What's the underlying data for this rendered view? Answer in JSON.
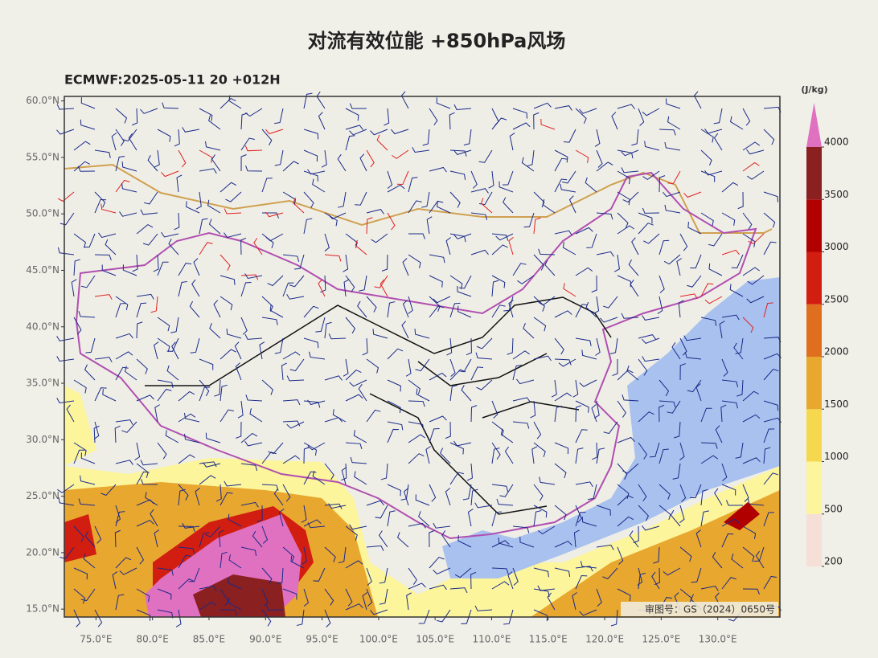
{
  "header": {
    "title": "对流有效位能 +850hPa风场",
    "subtitle": "ECMWF:2025-05-11 20 +012H"
  },
  "map": {
    "lat_lim": [
      14.3,
      60.4
    ],
    "lon_lim": [
      72.2,
      135.5
    ],
    "lat_ticks": [
      {
        "value": 60,
        "label": "60.0°N"
      },
      {
        "value": 55,
        "label": "55.0°N"
      },
      {
        "value": 50,
        "label": "50.0°N"
      },
      {
        "value": 45,
        "label": "45.0°N"
      },
      {
        "value": 40,
        "label": "40.0°N"
      },
      {
        "value": 35,
        "label": "35.0°N"
      },
      {
        "value": 30,
        "label": "30.0°N"
      },
      {
        "value": 25,
        "label": "25.0°N"
      },
      {
        "value": 20,
        "label": "20.0°N"
      },
      {
        "value": 15,
        "label": "15.0°N"
      }
    ],
    "lon_ticks": [
      {
        "value": 75,
        "label": "75.0°E"
      },
      {
        "value": 80,
        "label": "80.0°E"
      },
      {
        "value": 85,
        "label": "85.0°E"
      },
      {
        "value": 90,
        "label": "90.0°E"
      },
      {
        "value": 95,
        "label": "95.0°E"
      },
      {
        "value": 100,
        "label": "100.0°E"
      },
      {
        "value": 105,
        "label": "105.0°E"
      },
      {
        "value": 110,
        "label": "110.0°E"
      },
      {
        "value": 115,
        "label": "115.0°E"
      },
      {
        "value": 120,
        "label": "120.0°E"
      },
      {
        "value": 125,
        "label": "125.0°E"
      },
      {
        "value": 130,
        "label": "130.0°E"
      }
    ],
    "review_number": "审图号：GS（2024）0650号"
  },
  "colorbar": {
    "unit": "(J/kg)",
    "levels": [
      200,
      500,
      1000,
      1500,
      2000,
      2500,
      3000,
      3500,
      4000
    ],
    "colors": [
      "#f6dfd6",
      "#fcf59c",
      "#f5d84e",
      "#e8a72e",
      "#df6f1f",
      "#d21e10",
      "#b00000",
      "#8a2020"
    ],
    "extend_color": "#e070c0"
  }
}
